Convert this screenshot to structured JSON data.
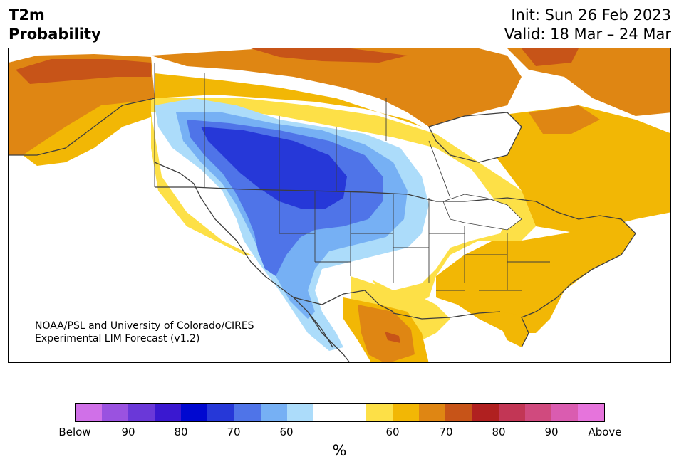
{
  "title": {
    "left_line1": "T2m",
    "left_line2": "Probability",
    "right_line1": "Init: Sun 26 Feb 2023",
    "right_line2": "Valid: 18 Mar – 24 Mar"
  },
  "credit": {
    "line1": "NOAA/PSL and University of Colorado/CIRES",
    "line2": "Experimental LIM Forecast (v1.2)"
  },
  "colorbar": {
    "colors": [
      "#d070e8",
      "#9a52e0",
      "#6a38d8",
      "#3a18d0",
      "#0008d0",
      "#2638d8",
      "#4f74e8",
      "#76b0f4",
      "#acdcfa",
      "#ffffff",
      "#ffffff",
      "#fde047",
      "#f2b705",
      "#df8613",
      "#c75418",
      "#b02020",
      "#c23655",
      "#d04a7e",
      "#da5cb0",
      "#e674dc"
    ],
    "tick_labels": [
      "Below",
      "90",
      "80",
      "70",
      "60",
      "60",
      "70",
      "80",
      "90",
      "Above"
    ],
    "unit": "%"
  },
  "map_colors": {
    "below_60": "#acdcfa",
    "below_70": "#76b0f4",
    "below_80": "#4f74e8",
    "below_90": "#2638d8",
    "above_60": "#fde047",
    "above_70": "#f2b705",
    "above_80": "#df8613",
    "above_90": "#c75418"
  }
}
